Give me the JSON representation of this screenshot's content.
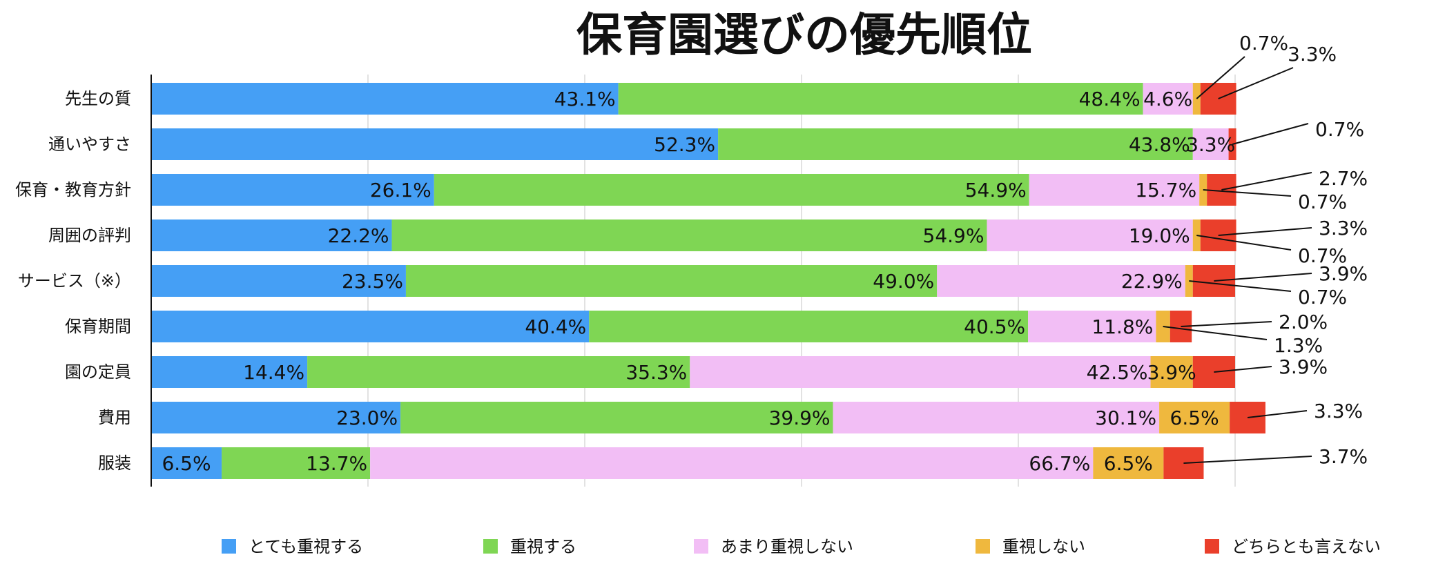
{
  "chart_data": {
    "type": "bar",
    "orientation": "horizontal",
    "stacked": true,
    "title": "保育園選びの優先順位",
    "categories": [
      "先生の質",
      "通いやすさ",
      "保育・教育方針",
      "周囲の評判",
      "サービス（※）",
      "保育期間",
      "園の定員",
      "費用",
      "服装"
    ],
    "series": [
      {
        "name": "とても重視する",
        "color": "#459ff5",
        "values": [
          43.1,
          52.3,
          26.1,
          22.2,
          23.5,
          40.4,
          14.4,
          23.0,
          6.5
        ],
        "labels": [
          "43.1%",
          "52.3%",
          "26.1%",
          "22.2%",
          "23.5%",
          "40.4%",
          "14.4%",
          "23.0%",
          "6.5%"
        ]
      },
      {
        "name": "重視する",
        "color": "#7fd654",
        "values": [
          48.4,
          43.8,
          54.9,
          54.9,
          49.0,
          40.5,
          35.3,
          39.9,
          13.7
        ],
        "labels": [
          "48.4%",
          "43.8%",
          "54.9%",
          "54.9%",
          "49.0%",
          "40.5%",
          "35.3%",
          "39.9%",
          "13.7%"
        ]
      },
      {
        "name": "あまり重視しない",
        "color": "#f2bef5",
        "values": [
          4.6,
          3.3,
          15.7,
          19.0,
          22.9,
          11.8,
          42.5,
          30.1,
          66.7
        ],
        "labels": [
          "4.6%",
          "3.3%",
          "15.7%",
          "19.0%",
          "22.9%",
          "11.8%",
          "42.5%",
          "30.1%",
          "66.7%"
        ]
      },
      {
        "name": "重視しない",
        "color": "#efb83e",
        "values": [
          0.7,
          0,
          0.7,
          0.7,
          0.7,
          1.3,
          3.9,
          6.5,
          6.5
        ],
        "labels": [
          "0.7%",
          "",
          "0.7%",
          "0.7%",
          "0.7%",
          "1.3%",
          "3.9%",
          "6.5%",
          "6.5%"
        ]
      },
      {
        "name": "どちらとも言えない",
        "color": "#ea3f2b",
        "values": [
          3.3,
          0.7,
          2.7,
          3.3,
          3.9,
          2.0,
          3.9,
          3.3,
          3.7
        ],
        "labels": [
          "3.3%",
          "0.7%",
          "2.7%",
          "3.3%",
          "3.9%",
          "2.0%",
          "3.9%",
          "3.3%",
          "3.7%"
        ]
      }
    ],
    "xlim": [
      0,
      100
    ],
    "grid": true,
    "legend_position": "bottom"
  }
}
